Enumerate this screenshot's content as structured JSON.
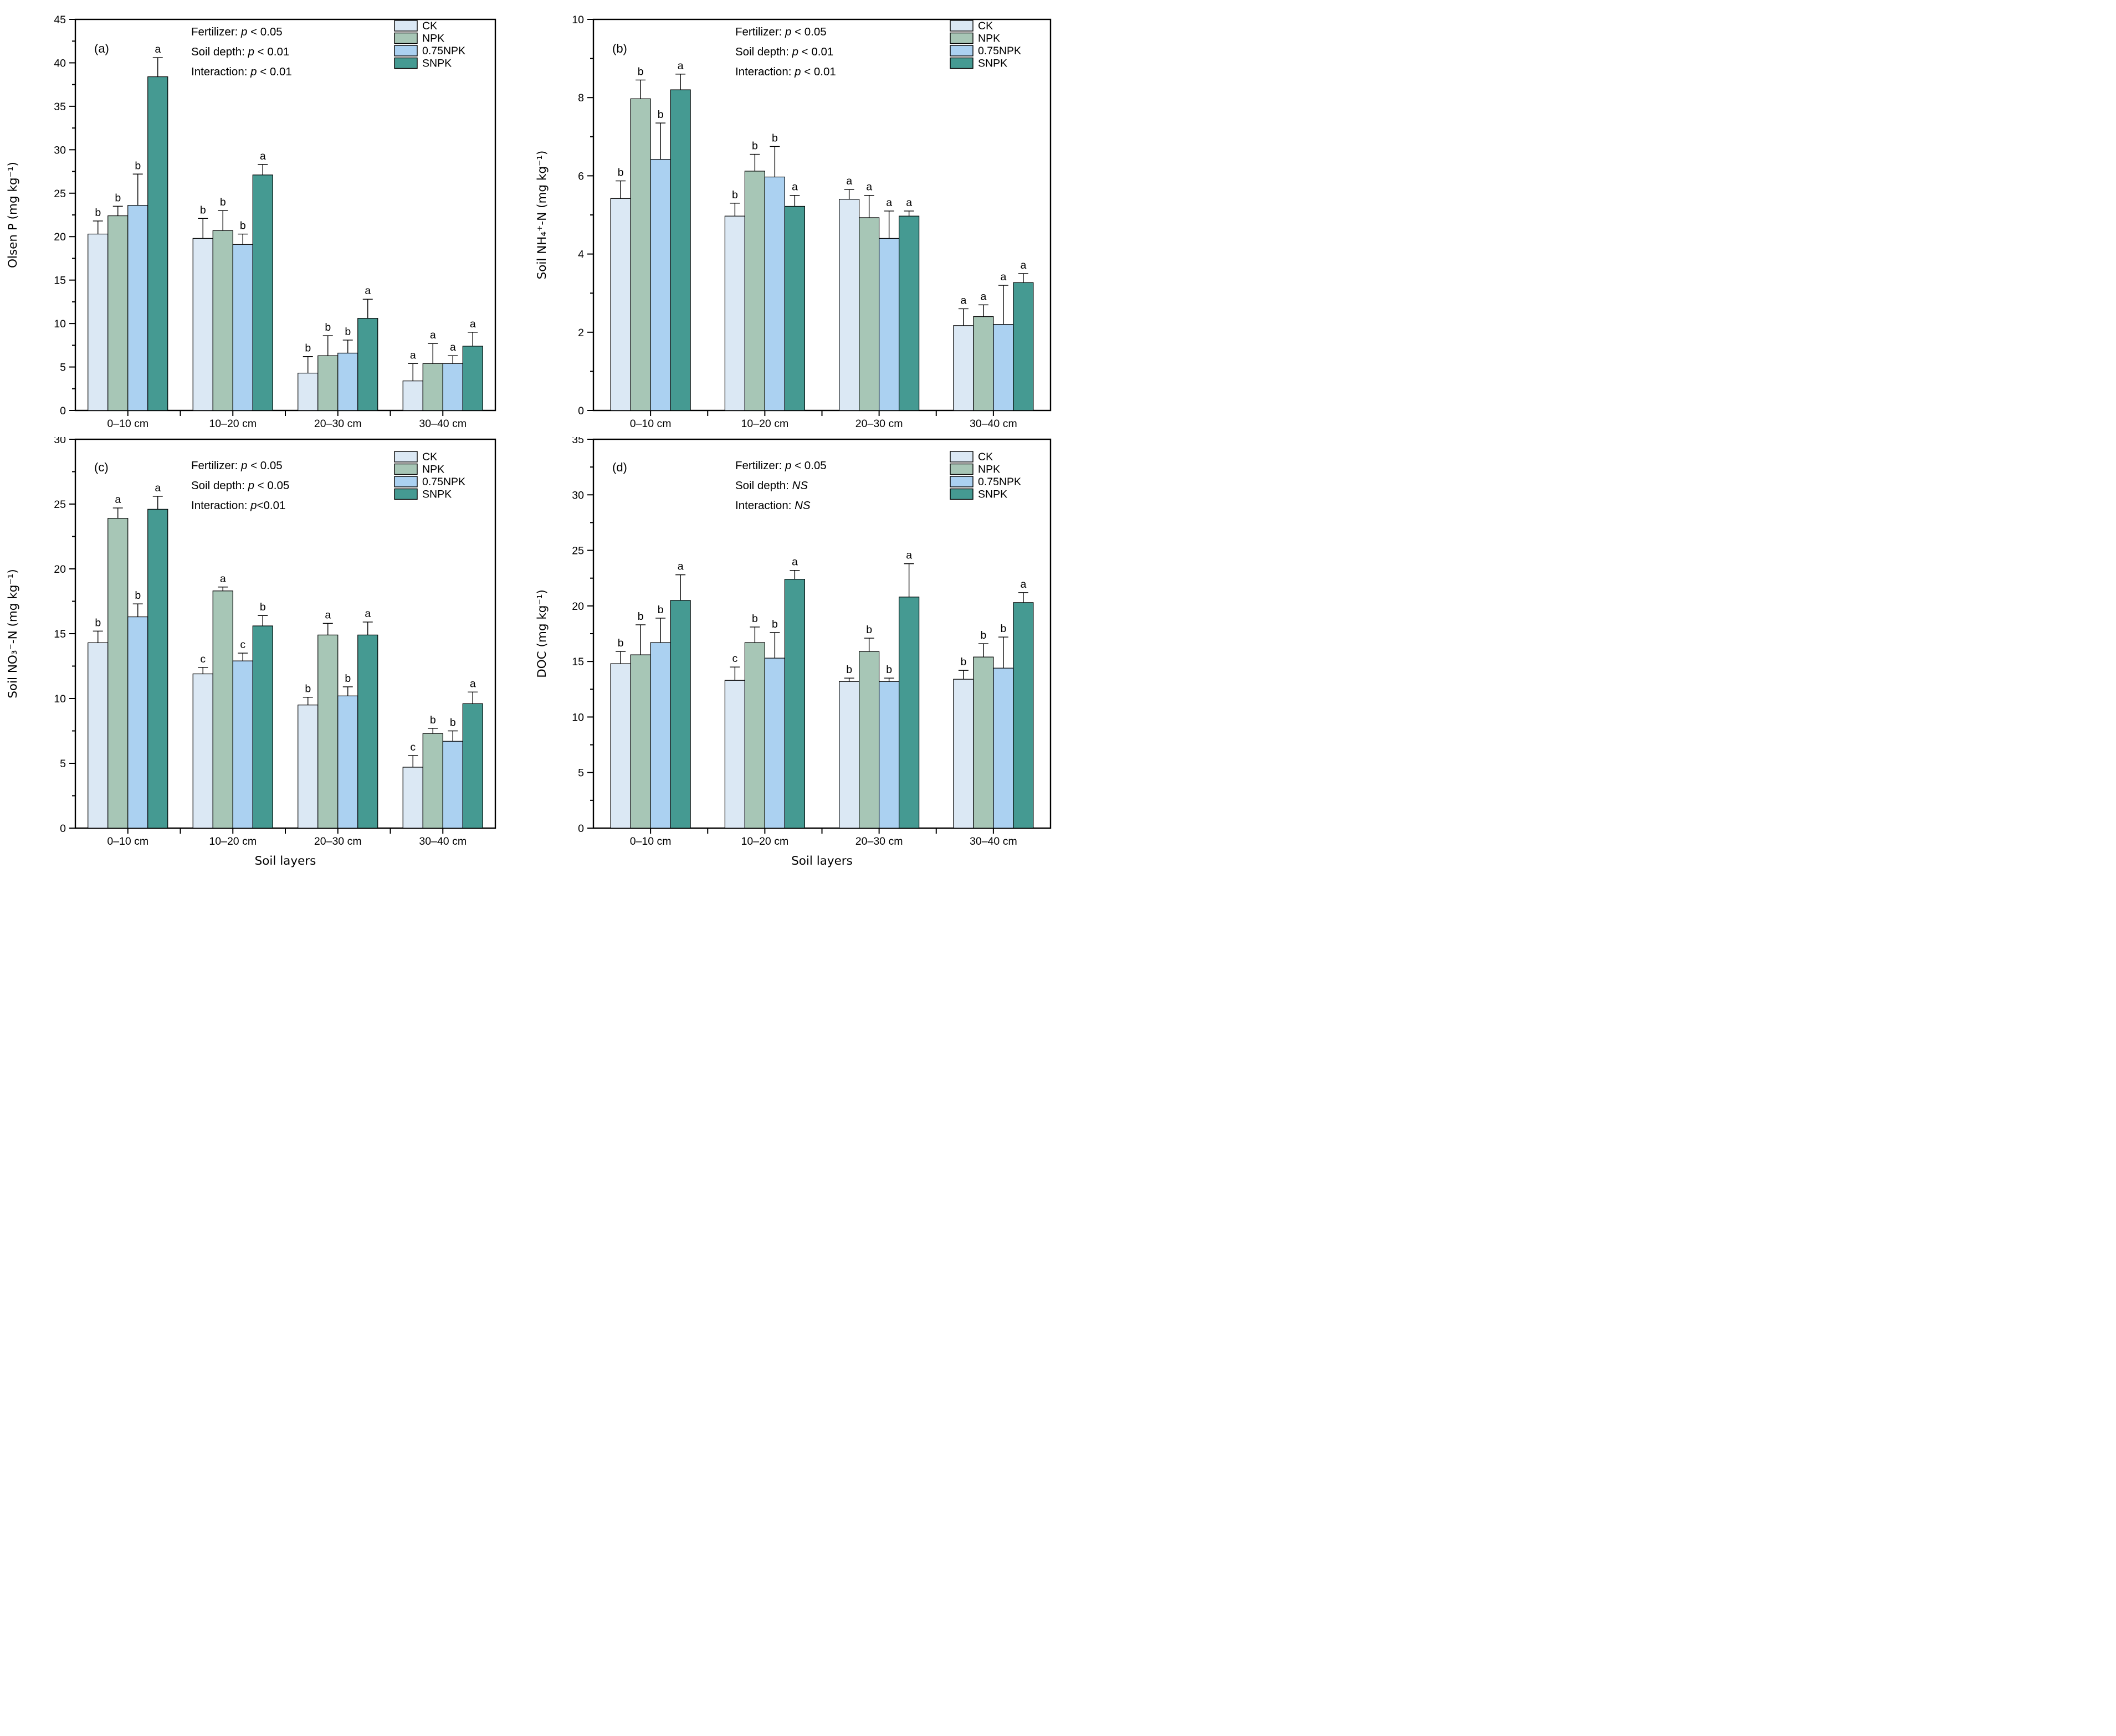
{
  "figure": {
    "x_axis_title": "Soil layers",
    "categories": [
      "0–10 cm",
      "10–20 cm",
      "20–30 cm",
      "30–40 cm"
    ],
    "treatments": [
      "CK",
      "NPK",
      "0.75NPK",
      "SNPK"
    ],
    "colors": {
      "CK": "#dbe8f4",
      "NPK": "#a7c6b6",
      "0.75NPK": "#abd1f1",
      "SNPK": "#459a92",
      "bar_border": "#000000",
      "axis": "#000000"
    },
    "legend_position": "top-right-inside",
    "grid": "off"
  },
  "chart_data": [
    {
      "id": "a",
      "panel_label": "(a)",
      "type": "bar",
      "ylabel": "Olsen P (mg kg⁻¹)",
      "xlabel": "",
      "ylim": [
        0,
        45
      ],
      "ytick_step": 5,
      "annotations": [
        [
          {
            "t": "Fertilizer: "
          },
          {
            "t": "p",
            "i": true
          },
          {
            "t": " < 0.05"
          }
        ],
        [
          {
            "t": "Soil depth: "
          },
          {
            "t": "p",
            "i": true
          },
          {
            "t": " < 0.01"
          }
        ],
        [
          {
            "t": "Interaction: "
          },
          {
            "t": "p",
            "i": true
          },
          {
            "t": " < 0.01"
          }
        ]
      ],
      "series": [
        {
          "name": "CK",
          "values": [
            20.3,
            19.8,
            4.3,
            3.4
          ],
          "errors": [
            1.5,
            2.3,
            1.9,
            2.0
          ],
          "letters": [
            "b",
            "b",
            "b",
            "a"
          ]
        },
        {
          "name": "NPK",
          "values": [
            22.4,
            20.7,
            6.3,
            5.4
          ],
          "errors": [
            1.1,
            2.3,
            2.3,
            2.3
          ],
          "letters": [
            "b",
            "b",
            "b",
            "a"
          ]
        },
        {
          "name": "0.75NPK",
          "values": [
            23.6,
            19.1,
            6.6,
            5.4
          ],
          "errors": [
            3.6,
            1.2,
            1.5,
            0.9
          ],
          "letters": [
            "b",
            "b",
            "b",
            "a"
          ]
        },
        {
          "name": "SNPK",
          "values": [
            38.4,
            27.1,
            10.6,
            7.4
          ],
          "errors": [
            2.2,
            1.2,
            2.2,
            1.6
          ],
          "letters": [
            "a",
            "a",
            "a",
            "a"
          ]
        }
      ]
    },
    {
      "id": "b",
      "panel_label": "(b)",
      "type": "bar",
      "ylabel": "Soil NH₄⁺-N (mg kg⁻¹)",
      "xlabel": "",
      "ylim": [
        0,
        10
      ],
      "ytick_step": 2,
      "annotations": [
        [
          {
            "t": "Fertilizer: "
          },
          {
            "t": "p",
            "i": true
          },
          {
            "t": " < 0.05"
          }
        ],
        [
          {
            "t": "Soil depth: "
          },
          {
            "t": "p",
            "i": true
          },
          {
            "t": " < 0.01"
          }
        ],
        [
          {
            "t": "Interaction: "
          },
          {
            "t": "p",
            "i": true
          },
          {
            "t": " < 0.01"
          }
        ]
      ],
      "series": [
        {
          "name": "CK",
          "values": [
            5.42,
            4.97,
            5.4,
            2.17
          ],
          "errors": [
            0.45,
            0.33,
            0.25,
            0.43
          ],
          "letters": [
            "b",
            "b",
            "a",
            "a"
          ]
        },
        {
          "name": "NPK",
          "values": [
            7.97,
            6.12,
            4.93,
            2.4
          ],
          "errors": [
            0.48,
            0.43,
            0.57,
            0.3
          ],
          "letters": [
            "b",
            "b",
            "a",
            "a"
          ]
        },
        {
          "name": "0.75NPK",
          "values": [
            6.42,
            5.97,
            4.4,
            2.2
          ],
          "errors": [
            0.93,
            0.78,
            0.7,
            1.0
          ],
          "letters": [
            "b",
            "b",
            "a",
            "a"
          ]
        },
        {
          "name": "SNPK",
          "values": [
            8.2,
            5.22,
            4.97,
            3.27
          ],
          "errors": [
            0.4,
            0.28,
            0.13,
            0.23
          ],
          "letters": [
            "a",
            "a",
            "a",
            "a"
          ]
        }
      ]
    },
    {
      "id": "c",
      "panel_label": "(c)",
      "type": "bar",
      "ylabel": "Soil NO₃⁻-N (mg kg⁻¹)",
      "xlabel": "Soil layers",
      "ylim": [
        0,
        30
      ],
      "ytick_step": 5,
      "annotations": [
        [
          {
            "t": "Fertilizer: "
          },
          {
            "t": "p",
            "i": true
          },
          {
            "t": " < 0.05"
          }
        ],
        [
          {
            "t": "Soil depth: "
          },
          {
            "t": "p",
            "i": true
          },
          {
            "t": " < 0.05"
          }
        ],
        [
          {
            "t": "Interaction: "
          },
          {
            "t": "p",
            "i": true
          },
          {
            "t": "<0.01"
          }
        ]
      ],
      "series": [
        {
          "name": "CK",
          "values": [
            14.3,
            11.9,
            9.5,
            4.7
          ],
          "errors": [
            0.9,
            0.5,
            0.6,
            0.9
          ],
          "letters": [
            "b",
            "c",
            "b",
            "c"
          ]
        },
        {
          "name": "NPK",
          "values": [
            23.9,
            18.3,
            14.9,
            7.3
          ],
          "errors": [
            0.8,
            0.3,
            0.9,
            0.4
          ],
          "letters": [
            "a",
            "a",
            "a",
            "b"
          ]
        },
        {
          "name": "0.75NPK",
          "values": [
            16.3,
            12.9,
            10.2,
            6.7
          ],
          "errors": [
            1.0,
            0.6,
            0.7,
            0.8
          ],
          "letters": [
            "b",
            "c",
            "b",
            "b"
          ]
        },
        {
          "name": "SNPK",
          "values": [
            24.6,
            15.6,
            14.9,
            9.6
          ],
          "errors": [
            1.0,
            0.8,
            1.0,
            0.9
          ],
          "letters": [
            "a",
            "b",
            "a",
            "a"
          ]
        }
      ]
    },
    {
      "id": "d",
      "panel_label": "(d)",
      "type": "bar",
      "ylabel": "DOC (mg kg⁻¹)",
      "xlabel": "Soil layers",
      "ylim": [
        0,
        35
      ],
      "ytick_step": 5,
      "annotations": [
        [
          {
            "t": "Fertilizer: "
          },
          {
            "t": "p",
            "i": true
          },
          {
            "t": " < 0.05"
          }
        ],
        [
          {
            "t": "Soil depth: "
          },
          {
            "t": "NS",
            "i": true
          }
        ],
        [
          {
            "t": "Interaction: "
          },
          {
            "t": "NS",
            "i": true
          }
        ]
      ],
      "series": [
        {
          "name": "CK",
          "values": [
            14.8,
            13.3,
            13.2,
            13.4
          ],
          "errors": [
            1.1,
            1.2,
            0.3,
            0.8
          ],
          "letters": [
            "b",
            "c",
            "b",
            "b"
          ]
        },
        {
          "name": "NPK",
          "values": [
            15.6,
            16.7,
            15.9,
            15.4
          ],
          "errors": [
            2.7,
            1.4,
            1.2,
            1.2
          ],
          "letters": [
            "b",
            "b",
            "b",
            "b"
          ]
        },
        {
          "name": "0.75NPK",
          "values": [
            16.7,
            15.3,
            13.2,
            14.4
          ],
          "errors": [
            2.2,
            2.3,
            0.3,
            2.8
          ],
          "letters": [
            "b",
            "b",
            "b",
            "b"
          ]
        },
        {
          "name": "SNPK",
          "values": [
            20.5,
            22.4,
            20.8,
            20.3
          ],
          "errors": [
            2.3,
            0.8,
            3.0,
            0.9
          ],
          "letters": [
            "a",
            "a",
            "a",
            "a"
          ]
        }
      ]
    }
  ]
}
